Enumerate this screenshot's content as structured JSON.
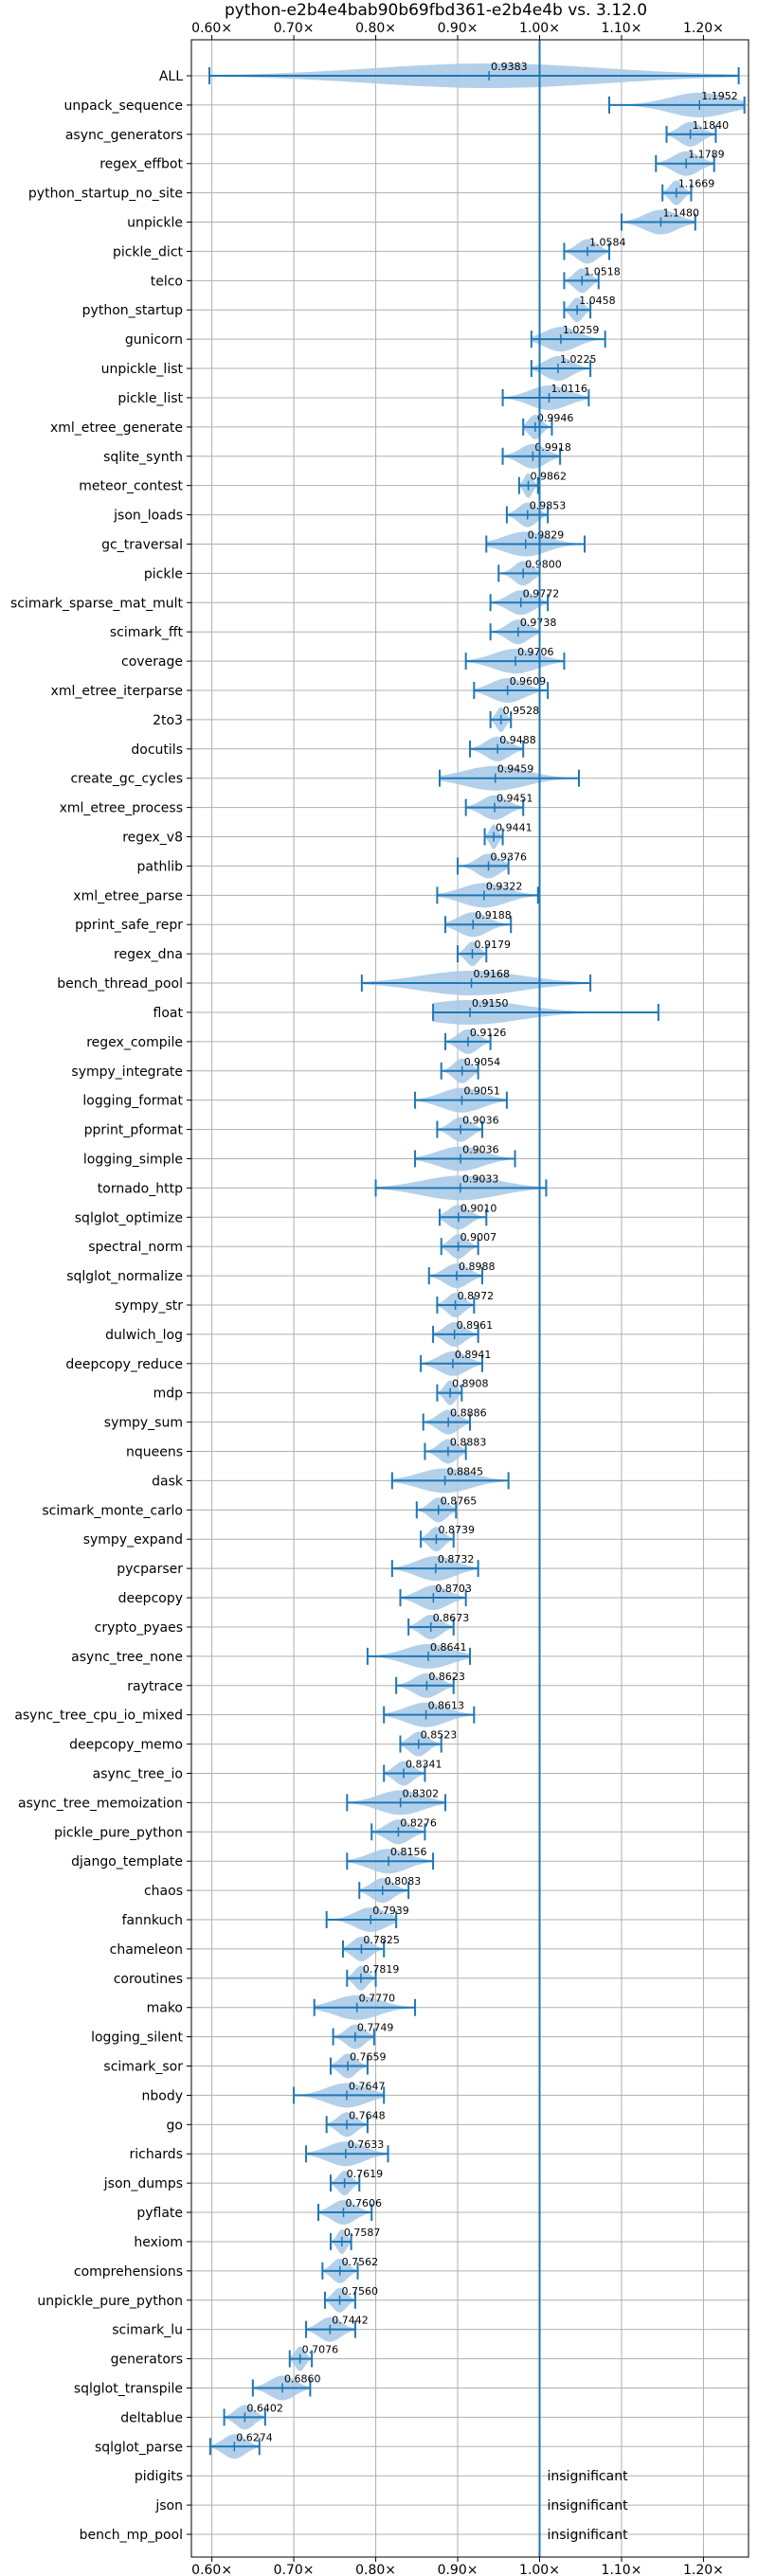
{
  "chart_data": {
    "type": "violin",
    "title": "python-e2b4e4bab90b69fbd361-e2b4e4b vs. 3.12.0",
    "xlim": [
      0.575,
      1.255
    ],
    "xticks": [
      0.6,
      0.7,
      0.8,
      0.9,
      1.0,
      1.1,
      1.2
    ],
    "xtick_labels": [
      "0.60×",
      "0.70×",
      "0.80×",
      "0.90×",
      "1.00×",
      "1.10×",
      "1.20×"
    ],
    "reference_line": 1.0,
    "grid": true,
    "colors": {
      "violin": "#a6c8e6",
      "line": "#1f77b4",
      "grid": "#b0b0b0"
    },
    "insignificant_label": "insignificant",
    "benchmarks": [
      {
        "name": "ALL",
        "label": "0.9383",
        "min": 0.597,
        "max": 1.243
      },
      {
        "name": "unpack_sequence",
        "label": "1.1952",
        "min": 1.085,
        "max": 1.25
      },
      {
        "name": "async_generators",
        "label": "1.1840",
        "min": 1.155,
        "max": 1.215
      },
      {
        "name": "regex_effbot",
        "label": "1.1789",
        "min": 1.142,
        "max": 1.213
      },
      {
        "name": "python_startup_no_site",
        "label": "1.1669",
        "min": 1.15,
        "max": 1.185
      },
      {
        "name": "unpickle",
        "label": "1.1480",
        "min": 1.1,
        "max": 1.19
      },
      {
        "name": "pickle_dict",
        "label": "1.0584",
        "min": 1.03,
        "max": 1.085
      },
      {
        "name": "telco",
        "label": "1.0518",
        "min": 1.03,
        "max": 1.072
      },
      {
        "name": "python_startup",
        "label": "1.0458",
        "min": 1.03,
        "max": 1.062
      },
      {
        "name": "gunicorn",
        "label": "1.0259",
        "min": 0.99,
        "max": 1.08
      },
      {
        "name": "unpickle_list",
        "label": "1.0225",
        "min": 0.99,
        "max": 1.062
      },
      {
        "name": "pickle_list",
        "label": "1.0116",
        "min": 0.955,
        "max": 1.06
      },
      {
        "name": "xml_etree_generate",
        "label": "0.9946",
        "min": 0.98,
        "max": 1.015
      },
      {
        "name": "sqlite_synth",
        "label": "0.9918",
        "min": 0.955,
        "max": 1.025
      },
      {
        "name": "meteor_contest",
        "label": "0.9862",
        "min": 0.975,
        "max": 0.998
      },
      {
        "name": "json_loads",
        "label": "0.9853",
        "min": 0.96,
        "max": 1.01
      },
      {
        "name": "gc_traversal",
        "label": "0.9829",
        "min": 0.935,
        "max": 1.055
      },
      {
        "name": "pickle",
        "label": "0.9800",
        "min": 0.95,
        "max": 1.0
      },
      {
        "name": "scimark_sparse_mat_mult",
        "label": "0.9772",
        "min": 0.94,
        "max": 1.01
      },
      {
        "name": "scimark_fft",
        "label": "0.9738",
        "min": 0.94,
        "max": 1.0
      },
      {
        "name": "coverage",
        "label": "0.9706",
        "min": 0.91,
        "max": 1.03
      },
      {
        "name": "xml_etree_iterparse",
        "label": "0.9609",
        "min": 0.92,
        "max": 1.01
      },
      {
        "name": "2to3",
        "label": "0.9528",
        "min": 0.94,
        "max": 0.965
      },
      {
        "name": "docutils",
        "label": "0.9488",
        "min": 0.915,
        "max": 0.98
      },
      {
        "name": "create_gc_cycles",
        "label": "0.9459",
        "min": 0.878,
        "max": 1.048
      },
      {
        "name": "xml_etree_process",
        "label": "0.9451",
        "min": 0.91,
        "max": 0.98
      },
      {
        "name": "regex_v8",
        "label": "0.9441",
        "min": 0.933,
        "max": 0.955
      },
      {
        "name": "pathlib",
        "label": "0.9376",
        "min": 0.9,
        "max": 0.962
      },
      {
        "name": "xml_etree_parse",
        "label": "0.9322",
        "min": 0.875,
        "max": 0.998
      },
      {
        "name": "pprint_safe_repr",
        "label": "0.9188",
        "min": 0.885,
        "max": 0.965
      },
      {
        "name": "regex_dna",
        "label": "0.9179",
        "min": 0.9,
        "max": 0.935
      },
      {
        "name": "bench_thread_pool",
        "label": "0.9168",
        "min": 0.783,
        "max": 1.062
      },
      {
        "name": "float",
        "label": "0.9150",
        "min": 0.87,
        "max": 1.145
      },
      {
        "name": "regex_compile",
        "label": "0.9126",
        "min": 0.885,
        "max": 0.94
      },
      {
        "name": "sympy_integrate",
        "label": "0.9054",
        "min": 0.88,
        "max": 0.925
      },
      {
        "name": "logging_format",
        "label": "0.9051",
        "min": 0.848,
        "max": 0.96
      },
      {
        "name": "pprint_pformat",
        "label": "0.9036",
        "min": 0.875,
        "max": 0.93
      },
      {
        "name": "logging_simple",
        "label": "0.9036",
        "min": 0.848,
        "max": 0.97
      },
      {
        "name": "tornado_http",
        "label": "0.9033",
        "min": 0.8,
        "max": 1.008
      },
      {
        "name": "sqlglot_optimize",
        "label": "0.9010",
        "min": 0.878,
        "max": 0.935
      },
      {
        "name": "spectral_norm",
        "label": "0.9007",
        "min": 0.88,
        "max": 0.925
      },
      {
        "name": "sqlglot_normalize",
        "label": "0.8988",
        "min": 0.865,
        "max": 0.93
      },
      {
        "name": "sympy_str",
        "label": "0.8972",
        "min": 0.875,
        "max": 0.92
      },
      {
        "name": "dulwich_log",
        "label": "0.8961",
        "min": 0.87,
        "max": 0.925
      },
      {
        "name": "deepcopy_reduce",
        "label": "0.8941",
        "min": 0.855,
        "max": 0.93
      },
      {
        "name": "mdp",
        "label": "0.8908",
        "min": 0.875,
        "max": 0.905
      },
      {
        "name": "sympy_sum",
        "label": "0.8886",
        "min": 0.858,
        "max": 0.915
      },
      {
        "name": "nqueens",
        "label": "0.8883",
        "min": 0.86,
        "max": 0.91
      },
      {
        "name": "dask",
        "label": "0.8845",
        "min": 0.82,
        "max": 0.962
      },
      {
        "name": "scimark_monte_carlo",
        "label": "0.8765",
        "min": 0.85,
        "max": 0.898
      },
      {
        "name": "sympy_expand",
        "label": "0.8739",
        "min": 0.855,
        "max": 0.895
      },
      {
        "name": "pycparser",
        "label": "0.8732",
        "min": 0.82,
        "max": 0.925
      },
      {
        "name": "deepcopy",
        "label": "0.8703",
        "min": 0.83,
        "max": 0.91
      },
      {
        "name": "crypto_pyaes",
        "label": "0.8673",
        "min": 0.84,
        "max": 0.895
      },
      {
        "name": "async_tree_none",
        "label": "0.8641",
        "min": 0.79,
        "max": 0.915
      },
      {
        "name": "raytrace",
        "label": "0.8623",
        "min": 0.825,
        "max": 0.895
      },
      {
        "name": "async_tree_cpu_io_mixed",
        "label": "0.8613",
        "min": 0.81,
        "max": 0.92
      },
      {
        "name": "deepcopy_memo",
        "label": "0.8523",
        "min": 0.83,
        "max": 0.88
      },
      {
        "name": "async_tree_io",
        "label": "0.8341",
        "min": 0.81,
        "max": 0.86
      },
      {
        "name": "async_tree_memoization",
        "label": "0.8302",
        "min": 0.765,
        "max": 0.885
      },
      {
        "name": "pickle_pure_python",
        "label": "0.8276",
        "min": 0.795,
        "max": 0.86
      },
      {
        "name": "django_template",
        "label": "0.8156",
        "min": 0.765,
        "max": 0.87
      },
      {
        "name": "chaos",
        "label": "0.8083",
        "min": 0.78,
        "max": 0.84
      },
      {
        "name": "fannkuch",
        "label": "0.7939",
        "min": 0.74,
        "max": 0.825
      },
      {
        "name": "chameleon",
        "label": "0.7825",
        "min": 0.76,
        "max": 0.81
      },
      {
        "name": "coroutines",
        "label": "0.7819",
        "min": 0.765,
        "max": 0.8
      },
      {
        "name": "mako",
        "label": "0.7770",
        "min": 0.725,
        "max": 0.848
      },
      {
        "name": "logging_silent",
        "label": "0.7749",
        "min": 0.748,
        "max": 0.798
      },
      {
        "name": "scimark_sor",
        "label": "0.7659",
        "min": 0.745,
        "max": 0.79
      },
      {
        "name": "nbody",
        "label": "0.7647",
        "min": 0.7,
        "max": 0.81
      },
      {
        "name": "go",
        "label": "0.7648",
        "min": 0.74,
        "max": 0.79
      },
      {
        "name": "richards",
        "label": "0.7633",
        "min": 0.715,
        "max": 0.815
      },
      {
        "name": "json_dumps",
        "label": "0.7619",
        "min": 0.745,
        "max": 0.78
      },
      {
        "name": "pyflate",
        "label": "0.7606",
        "min": 0.73,
        "max": 0.795
      },
      {
        "name": "hexiom",
        "label": "0.7587",
        "min": 0.745,
        "max": 0.77
      },
      {
        "name": "comprehensions",
        "label": "0.7562",
        "min": 0.735,
        "max": 0.778
      },
      {
        "name": "unpickle_pure_python",
        "label": "0.7560",
        "min": 0.738,
        "max": 0.775
      },
      {
        "name": "scimark_lu",
        "label": "0.7442",
        "min": 0.715,
        "max": 0.775
      },
      {
        "name": "generators",
        "label": "0.7076",
        "min": 0.695,
        "max": 0.722
      },
      {
        "name": "sqlglot_transpile",
        "label": "0.6860",
        "min": 0.65,
        "max": 0.72
      },
      {
        "name": "deltablue",
        "label": "0.6402",
        "min": 0.615,
        "max": 0.665
      },
      {
        "name": "sqlglot_parse",
        "label": "0.6274",
        "min": 0.598,
        "max": 0.658
      },
      {
        "name": "pidigits",
        "label": "insignificant",
        "insignificant": true
      },
      {
        "name": "json",
        "label": "insignificant",
        "insignificant": true
      },
      {
        "name": "bench_mp_pool",
        "label": "insignificant",
        "insignificant": true
      }
    ]
  }
}
